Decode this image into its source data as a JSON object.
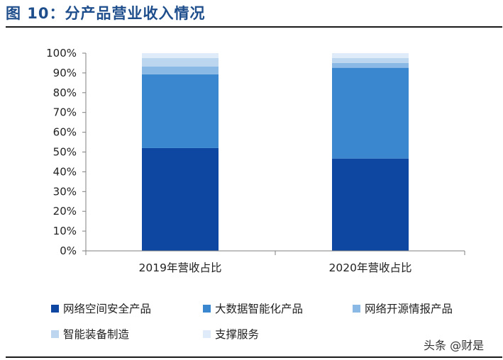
{
  "title": "图 10：分产品营业收入情况",
  "watermark": "头条 @财是",
  "chart_data": {
    "type": "bar",
    "stacked": true,
    "categories": [
      "2019年营收占比",
      "2020年营收占比"
    ],
    "y_ticks": [
      "0%",
      "10%",
      "20%",
      "30%",
      "40%",
      "50%",
      "60%",
      "70%",
      "80%",
      "90%",
      "100%"
    ],
    "ylim": [
      0,
      100
    ],
    "grid": false,
    "legend_position": "bottom",
    "series": [
      {
        "name": "网络空间安全产品",
        "color": "#0d47a1",
        "values": [
          52.0,
          46.7
        ]
      },
      {
        "name": "大数据智能化产品",
        "color": "#3a86cf",
        "values": [
          37.3,
          45.9
        ]
      },
      {
        "name": "网络开源情报产品",
        "color": "#8ab9e6",
        "values": [
          4.0,
          2.4
        ]
      },
      {
        "name": "智能装备制造",
        "color": "#bcd6f0",
        "values": [
          4.2,
          2.5
        ]
      },
      {
        "name": "支撑服务",
        "color": "#dfebf8",
        "values": [
          2.5,
          2.5
        ]
      }
    ]
  }
}
